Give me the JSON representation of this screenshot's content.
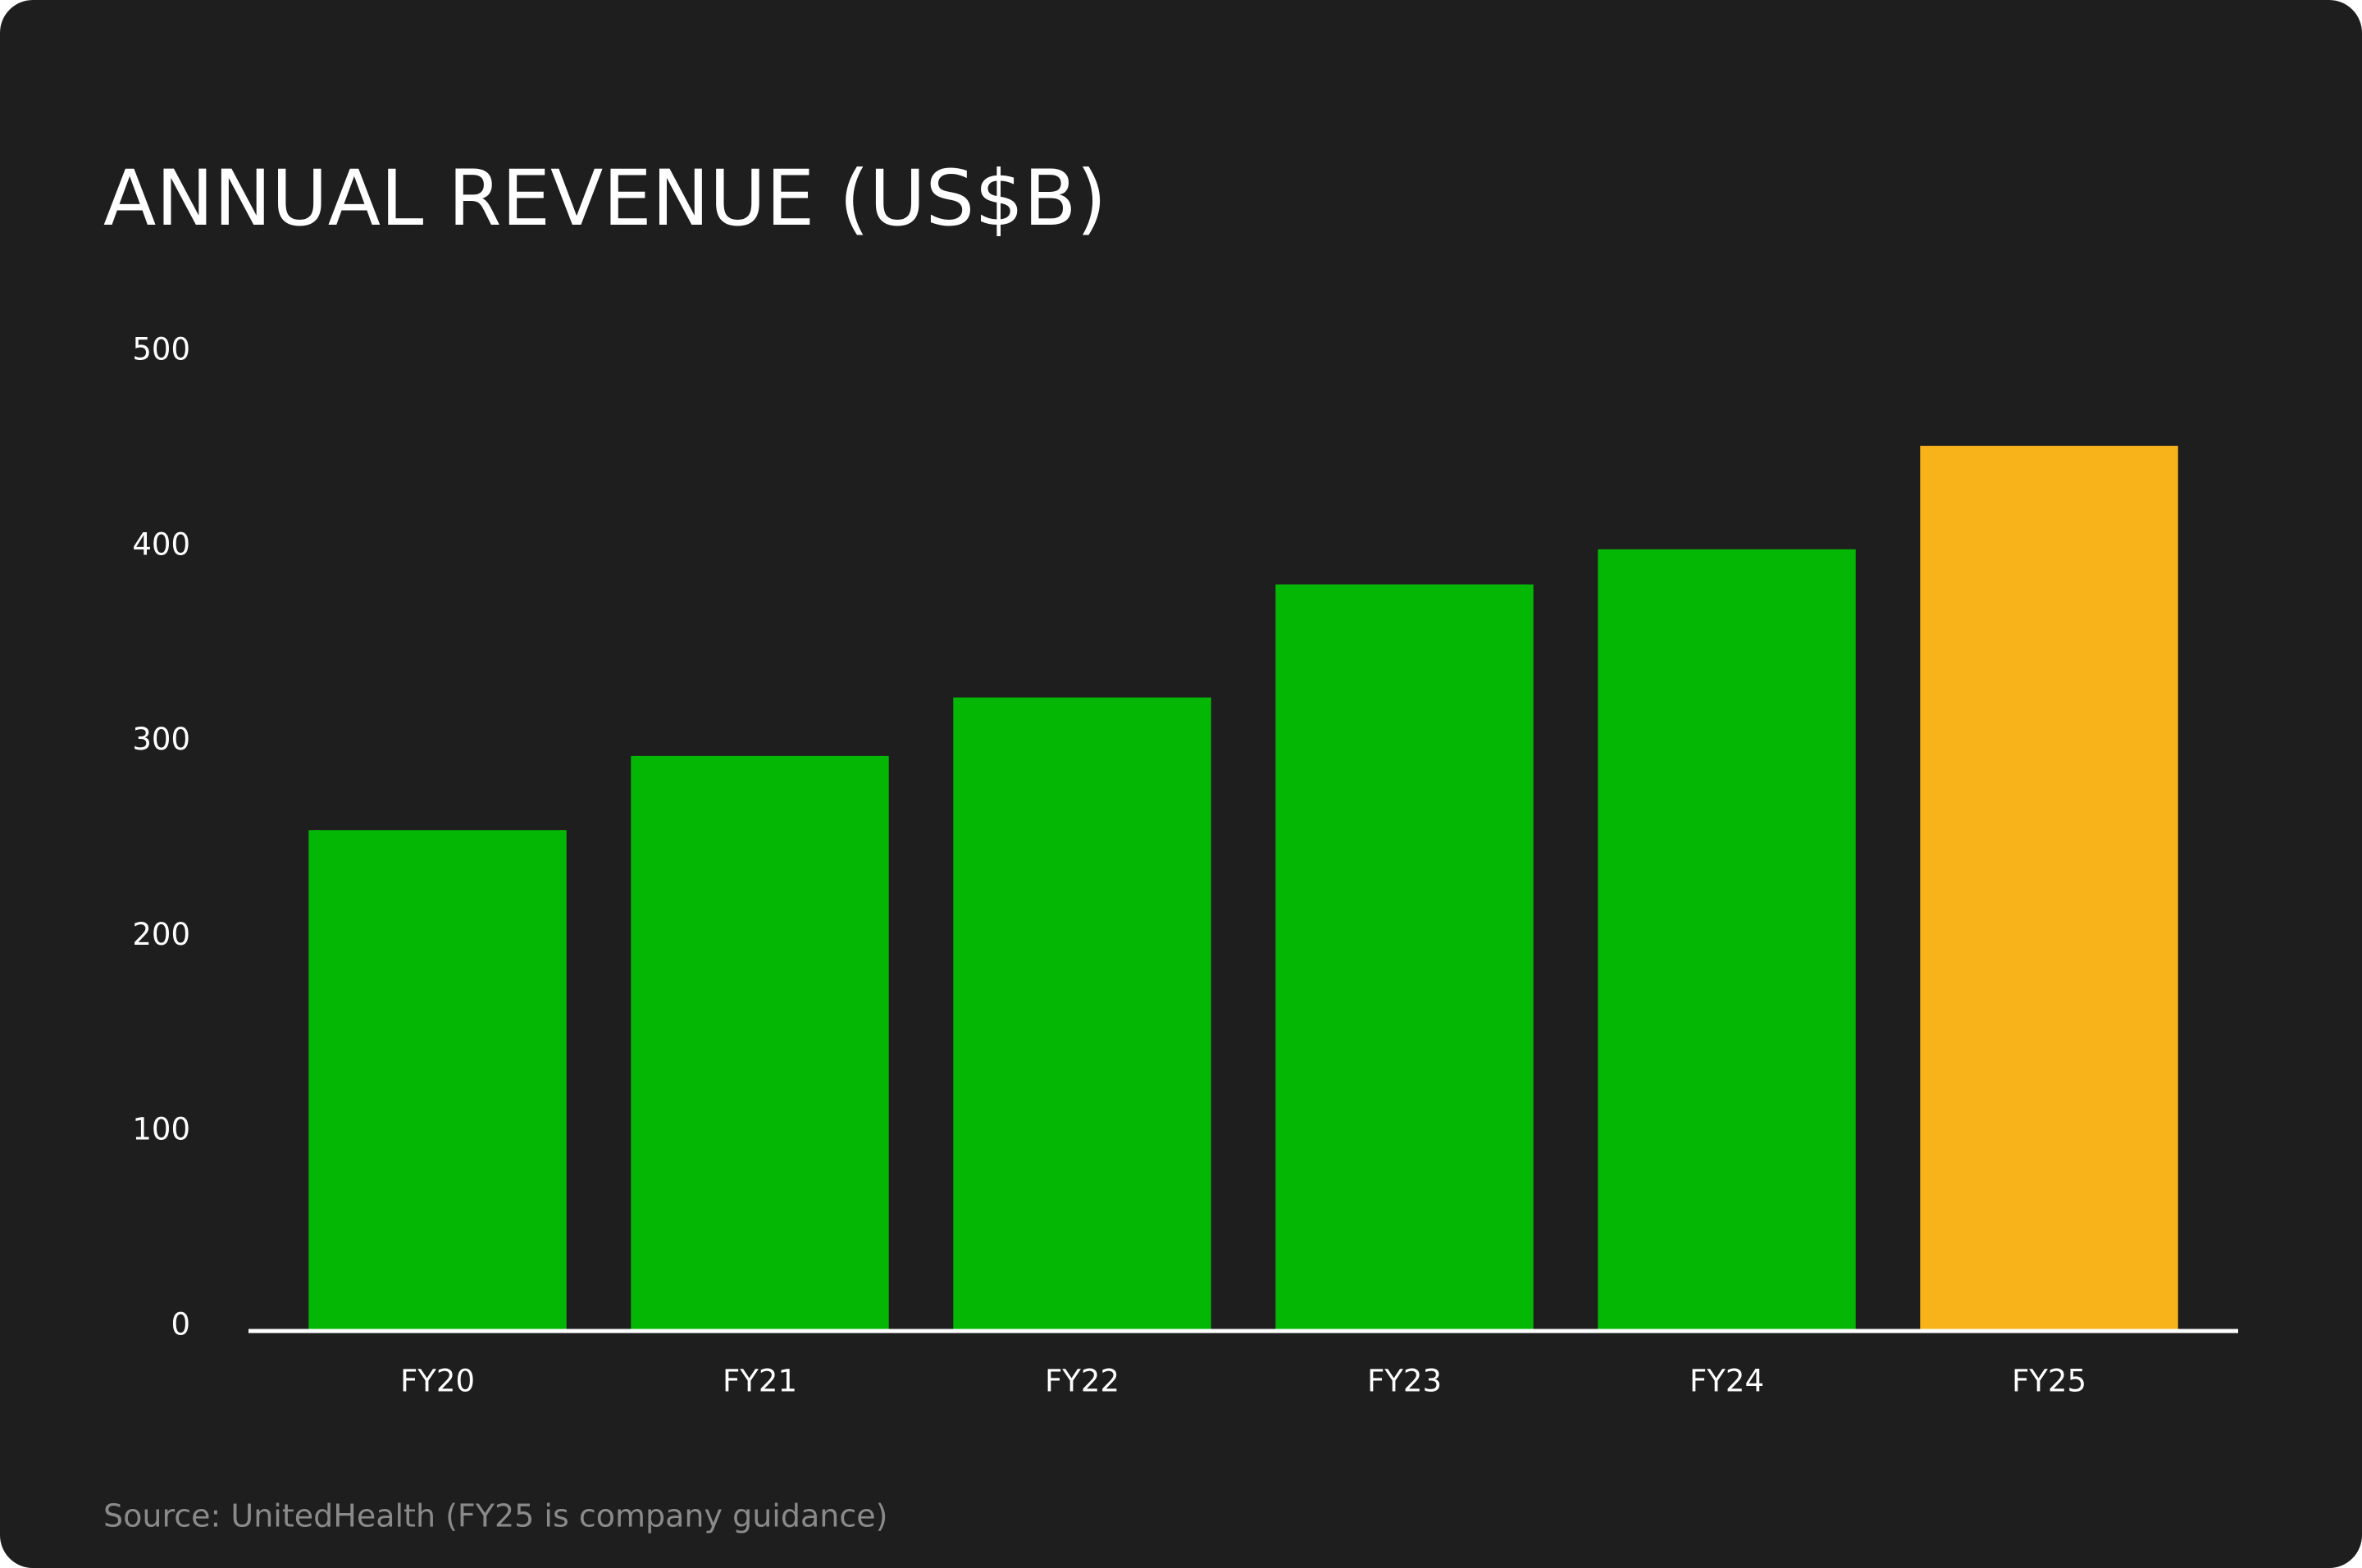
{
  "chart_data": {
    "type": "bar",
    "title": "ANNUAL REVENUE (US$B)",
    "categories": [
      "FY20",
      "FY21",
      "FY22",
      "FY23",
      "FY24",
      "FY25"
    ],
    "values": [
      256,
      294,
      324,
      382,
      400,
      453
    ],
    "colors": [
      "#05b705",
      "#05b705",
      "#05b705",
      "#05b705",
      "#05b705",
      "#f9b31a"
    ],
    "ylim": [
      0,
      500
    ],
    "yticks": [
      0,
      100,
      200,
      300,
      400,
      500
    ],
    "grid": false,
    "source": "Source: UnitedHealth (FY25 is company guidance)"
  }
}
